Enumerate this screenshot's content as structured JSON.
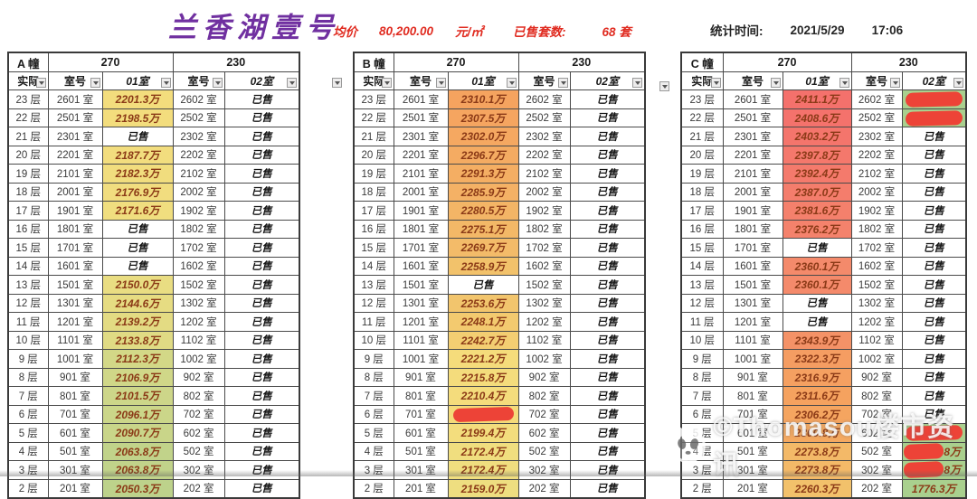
{
  "header": {
    "title": "兰香湖壹号",
    "avg_price_label": "均价",
    "avg_price_value": "80,200.00",
    "avg_price_unit": "元/㎡",
    "sold_label": "已售套数:",
    "sold_value": "68 套",
    "stat_time_label": "统计时间:",
    "stat_date": "2021/5/29",
    "stat_time": "17:06"
  },
  "table_common": {
    "col_floor": "实际",
    "col_room": "室号",
    "col_unit1": "01室",
    "col_unit2": "02室",
    "area1": "270",
    "area2": "230",
    "sold_text": "已售"
  },
  "colors": {
    "green": "#A9D08E",
    "redact": "#ED4337",
    "accent_red": "#E02B20",
    "title_purple": "#7030A0",
    "price_text": "#8B3A17",
    "scale": [
      [
        1776,
        "#A9D08E"
      ],
      [
        2050,
        "#BDD28B"
      ],
      [
        2100,
        "#CCD689"
      ],
      [
        2160,
        "#EFDE80"
      ],
      [
        2225,
        "#F5DC7B"
      ],
      [
        2255,
        "#F2C46C"
      ],
      [
        2310,
        "#F5A35F"
      ],
      [
        2365,
        "#F4886C"
      ],
      [
        2411,
        "#F4716C"
      ]
    ]
  },
  "watermark": {
    "icon": "panda-logo",
    "text": "©Thomasou楼市资讯"
  },
  "buildings": [
    {
      "name": "A 幢",
      "rows": [
        {
          "f": "23 层",
          "r1": "2601 室",
          "p1": "2201.3万",
          "v1": 2201.3,
          "r2": "2602 室",
          "p2": "已售"
        },
        {
          "f": "22 层",
          "r1": "2501 室",
          "p1": "2198.5万",
          "v1": 2198.5,
          "r2": "2502 室",
          "p2": "已售"
        },
        {
          "f": "21 层",
          "r1": "2301 室",
          "p1": "已售",
          "r2": "2302 室",
          "p2": "已售"
        },
        {
          "f": "20 层",
          "r1": "2201 室",
          "p1": "2187.7万",
          "v1": 2187.7,
          "r2": "2202 室",
          "p2": "已售"
        },
        {
          "f": "19 层",
          "r1": "2101 室",
          "p1": "2182.3万",
          "v1": 2182.3,
          "r2": "2102 室",
          "p2": "已售"
        },
        {
          "f": "18 层",
          "r1": "2001 室",
          "p1": "2176.9万",
          "v1": 2176.9,
          "r2": "2002 室",
          "p2": "已售"
        },
        {
          "f": "17 层",
          "r1": "1901 室",
          "p1": "2171.6万",
          "v1": 2171.6,
          "r2": "1902 室",
          "p2": "已售"
        },
        {
          "f": "16 层",
          "r1": "1801 室",
          "p1": "已售",
          "r2": "1802 室",
          "p2": "已售"
        },
        {
          "f": "15 层",
          "r1": "1701 室",
          "p1": "已售",
          "r2": "1702 室",
          "p2": "已售"
        },
        {
          "f": "14 层",
          "r1": "1601 室",
          "p1": "已售",
          "r2": "1602 室",
          "p2": "已售"
        },
        {
          "f": "13 层",
          "r1": "1501 室",
          "p1": "2150.0万",
          "v1": 2150.0,
          "r2": "1502 室",
          "p2": "已售"
        },
        {
          "f": "12 层",
          "r1": "1301 室",
          "p1": "2144.6万",
          "v1": 2144.6,
          "r2": "1302 室",
          "p2": "已售"
        },
        {
          "f": "11 层",
          "r1": "1201 室",
          "p1": "2139.2万",
          "v1": 2139.2,
          "r2": "1202 室",
          "p2": "已售"
        },
        {
          "f": "10 层",
          "r1": "1101 室",
          "p1": "2133.8万",
          "v1": 2133.8,
          "r2": "1102 室",
          "p2": "已售"
        },
        {
          "f": "9 层",
          "r1": "1001 室",
          "p1": "2112.3万",
          "v1": 2112.3,
          "r2": "1002 室",
          "p2": "已售"
        },
        {
          "f": "8 层",
          "r1": "901 室",
          "p1": "2106.9万",
          "v1": 2106.9,
          "r2": "902 室",
          "p2": "已售"
        },
        {
          "f": "7 层",
          "r1": "801 室",
          "p1": "2101.5万",
          "v1": 2101.5,
          "r2": "802 室",
          "p2": "已售"
        },
        {
          "f": "6 层",
          "r1": "701 室",
          "p1": "2096.1万",
          "v1": 2096.1,
          "r2": "702 室",
          "p2": "已售"
        },
        {
          "f": "5 层",
          "r1": "601 室",
          "p1": "2090.7万",
          "v1": 2090.7,
          "r2": "602 室",
          "p2": "已售"
        },
        {
          "f": "4 层",
          "r1": "501 室",
          "p1": "2063.8万",
          "v1": 2063.8,
          "r2": "502 室",
          "p2": "已售"
        },
        {
          "f": "3 层",
          "r1": "301 室",
          "p1": "2063.8万",
          "v1": 2063.8,
          "r2": "302 室",
          "p2": "已售"
        },
        {
          "f": "2 层",
          "r1": "201 室",
          "p1": "2050.3万",
          "v1": 2050.3,
          "r2": "202 室",
          "p2": "已售"
        }
      ]
    },
    {
      "name": "B 幢",
      "rows": [
        {
          "f": "23 层",
          "r1": "2601 室",
          "p1": "2310.1万",
          "v1": 2310.1,
          "r2": "2602 室",
          "p2": "已售"
        },
        {
          "f": "22 层",
          "r1": "2501 室",
          "p1": "2307.5万",
          "v1": 2307.5,
          "r2": "2502 室",
          "p2": "已售"
        },
        {
          "f": "21 层",
          "r1": "2301 室",
          "p1": "2302.0万",
          "v1": 2302.0,
          "r2": "2302 室",
          "p2": "已售"
        },
        {
          "f": "20 层",
          "r1": "2201 室",
          "p1": "2296.7万",
          "v1": 2296.7,
          "r2": "2202 室",
          "p2": "已售"
        },
        {
          "f": "19 层",
          "r1": "2101 室",
          "p1": "2291.3万",
          "v1": 2291.3,
          "r2": "2102 室",
          "p2": "已售"
        },
        {
          "f": "18 层",
          "r1": "2001 室",
          "p1": "2285.9万",
          "v1": 2285.9,
          "r2": "2002 室",
          "p2": "已售"
        },
        {
          "f": "17 层",
          "r1": "1901 室",
          "p1": "2280.5万",
          "v1": 2280.5,
          "r2": "1902 室",
          "p2": "已售"
        },
        {
          "f": "16 层",
          "r1": "1801 室",
          "p1": "2275.1万",
          "v1": 2275.1,
          "r2": "1802 室",
          "p2": "已售"
        },
        {
          "f": "15 层",
          "r1": "1701 室",
          "p1": "2269.7万",
          "v1": 2269.7,
          "r2": "1702 室",
          "p2": "已售"
        },
        {
          "f": "14 层",
          "r1": "1601 室",
          "p1": "2258.9万",
          "v1": 2258.9,
          "r2": "1602 室",
          "p2": "已售"
        },
        {
          "f": "13 层",
          "r1": "1501 室",
          "p1": "已售",
          "r2": "1502 室",
          "p2": "已售"
        },
        {
          "f": "12 层",
          "r1": "1301 室",
          "p1": "2253.6万",
          "v1": 2253.6,
          "r2": "1302 室",
          "p2": "已售"
        },
        {
          "f": "11 层",
          "r1": "1201 室",
          "p1": "2248.1万",
          "v1": 2248.1,
          "r2": "1202 室",
          "p2": "已售"
        },
        {
          "f": "10 层",
          "r1": "1101 室",
          "p1": "2242.7万",
          "v1": 2242.7,
          "r2": "1102 室",
          "p2": "已售"
        },
        {
          "f": "9 层",
          "r1": "1001 室",
          "p1": "2221.2万",
          "v1": 2221.2,
          "r2": "1002 室",
          "p2": "已售"
        },
        {
          "f": "8 层",
          "r1": "901 室",
          "p1": "2215.8万",
          "v1": 2215.8,
          "r2": "902 室",
          "p2": "已售"
        },
        {
          "f": "7 层",
          "r1": "801 室",
          "p1": "2210.4万",
          "v1": 2210.4,
          "r2": "802 室",
          "p2": "已售"
        },
        {
          "f": "6 层",
          "r1": "701 室",
          "p1": "",
          "bg1": "#F4DA79",
          "redact1": "full",
          "r2": "702 室",
          "p2": "已售"
        },
        {
          "f": "5 层",
          "r1": "601 室",
          "p1": "2199.4万",
          "v1": 2199.4,
          "r2": "602 室",
          "p2": "已售"
        },
        {
          "f": "4 层",
          "r1": "501 室",
          "p1": "2172.4万",
          "v1": 2172.4,
          "r2": "502 室",
          "p2": "已售"
        },
        {
          "f": "3 层",
          "r1": "301 室",
          "p1": "2172.4万",
          "v1": 2172.4,
          "r2": "302 室",
          "p2": "已售"
        },
        {
          "f": "2 层",
          "r1": "201 室",
          "p1": "2159.0万",
          "v1": 2159.0,
          "r2": "202 室",
          "p2": "已售"
        }
      ]
    },
    {
      "name": "C 幢",
      "rows": [
        {
          "f": "23 层",
          "r1": "2601 室",
          "p1": "2411.1万",
          "v1": 2411.1,
          "r2": "2602 室",
          "p2": "",
          "bg2": "green",
          "redact2": "full"
        },
        {
          "f": "22 层",
          "r1": "2501 室",
          "p1": "2408.6万",
          "v1": 2408.6,
          "r2": "2502 室",
          "p2": "",
          "bg2": "green",
          "redact2": "full"
        },
        {
          "f": "21 层",
          "r1": "2301 室",
          "p1": "2403.2万",
          "v1": 2403.2,
          "r2": "2302 室",
          "p2": "已售"
        },
        {
          "f": "20 层",
          "r1": "2201 室",
          "p1": "2397.8万",
          "v1": 2397.8,
          "r2": "2202 室",
          "p2": "已售"
        },
        {
          "f": "19 层",
          "r1": "2101 室",
          "p1": "2392.4万",
          "v1": 2392.4,
          "r2": "2102 室",
          "p2": "已售"
        },
        {
          "f": "18 层",
          "r1": "2001 室",
          "p1": "2387.0万",
          "v1": 2387.0,
          "r2": "2002 室",
          "p2": "已售"
        },
        {
          "f": "17 层",
          "r1": "1901 室",
          "p1": "2381.6万",
          "v1": 2381.6,
          "r2": "1902 室",
          "p2": "已售"
        },
        {
          "f": "16 层",
          "r1": "1801 室",
          "p1": "2376.2万",
          "v1": 2376.2,
          "r2": "1802 室",
          "p2": "已售"
        },
        {
          "f": "15 层",
          "r1": "1701 室",
          "p1": "已售",
          "r2": "1702 室",
          "p2": "已售"
        },
        {
          "f": "14 层",
          "r1": "1601 室",
          "p1": "2360.1万",
          "v1": 2360.1,
          "r2": "1602 室",
          "p2": "已售"
        },
        {
          "f": "13 层",
          "r1": "1501 室",
          "p1": "2360.1万",
          "v1": 2360.1,
          "r2": "1502 室",
          "p2": "已售"
        },
        {
          "f": "12 层",
          "r1": "1301 室",
          "p1": "已售",
          "r2": "1302 室",
          "p2": "已售"
        },
        {
          "f": "11 层",
          "r1": "1201 室",
          "p1": "已售",
          "r2": "1202 室",
          "p2": "已售"
        },
        {
          "f": "10 层",
          "r1": "1101 室",
          "p1": "2343.9万",
          "v1": 2343.9,
          "r2": "1102 室",
          "p2": "已售"
        },
        {
          "f": "9 层",
          "r1": "1001 室",
          "p1": "2322.3万",
          "v1": 2322.3,
          "r2": "1002 室",
          "p2": "已售"
        },
        {
          "f": "8 层",
          "r1": "901 室",
          "p1": "2316.9万",
          "v1": 2316.9,
          "r2": "902 室",
          "p2": "已售"
        },
        {
          "f": "7 层",
          "r1": "801 室",
          "p1": "2311.6万",
          "v1": 2311.6,
          "r2": "802 室",
          "p2": "已售"
        },
        {
          "f": "6 层",
          "r1": "701 室",
          "p1": "2306.2万",
          "v1": 2306.2,
          "r2": "702 室",
          "p2": "已售"
        },
        {
          "f": "5 层",
          "r1": "601 室",
          "p1": "2300.8万",
          "v1": 2300.8,
          "r2": "602 室",
          "p2": "",
          "bg2": "green",
          "redact2": "full"
        },
        {
          "f": "4 层",
          "r1": "501 室",
          "p1": "2273.8万",
          "v1": 2273.8,
          "r2": "502 室",
          "p2": "8万",
          "bg2": "green",
          "redact2": "partial"
        },
        {
          "f": "3 层",
          "r1": "301 室",
          "p1": "2273.8万",
          "v1": 2273.8,
          "r2": "302 室",
          "p2": "8万",
          "bg2": "green",
          "redact2": "partial"
        },
        {
          "f": "2 层",
          "r1": "201 室",
          "p1": "2260.3万",
          "v1": 2260.3,
          "r2": "202 室",
          "p2": "1776.3万",
          "v2": 1776.3,
          "bg2": "green"
        }
      ]
    }
  ]
}
